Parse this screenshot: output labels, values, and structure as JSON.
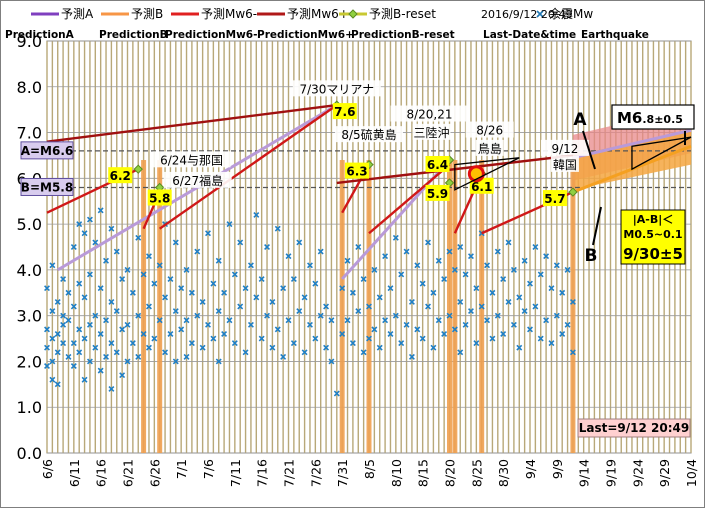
{
  "chart_data": {
    "type": "scatter",
    "x_start": "6/6",
    "x_end": "10/4",
    "x_ticks": [
      "6/6",
      "6/11",
      "6/16",
      "6/21",
      "6/26",
      "7/1",
      "7/6",
      "7/11",
      "7/16",
      "7/21",
      "7/26",
      "7/31",
      "8/5",
      "8/10",
      "8/15",
      "8/20",
      "8/25",
      "8/30",
      "9/4",
      "9/9",
      "9/14",
      "9/19",
      "9/24",
      "9/29",
      "10/4"
    ],
    "ylim": [
      0,
      9
    ],
    "y_ticks": [
      "0.0",
      "1.0",
      "2.0",
      "3.0",
      "4.0",
      "5.0",
      "6.0",
      "7.0",
      "8.0",
      "9.0"
    ],
    "last_date": "2016/9/12 20:49",
    "legend": [
      {
        "label": "予測A",
        "sub": "PredictionA",
        "color": "#7f3fbf",
        "kind": "line"
      },
      {
        "label": "予測B",
        "sub": "PredictionB",
        "color": "#f79646",
        "kind": "line"
      },
      {
        "label": "予測Mw6-",
        "sub": "PredictionMw6-",
        "color": "#e02020",
        "kind": "line"
      },
      {
        "label": "予測Mw6+",
        "sub": "PredictionMw6+",
        "color": "#b01818",
        "kind": "line"
      },
      {
        "label": "予測B-reset",
        "sub": "PredictionB-reset",
        "color": "#c8c832",
        "kind": "diamond-line"
      },
      {
        "label": "余震Mw",
        "sub": "Earthquake",
        "color": "#1f77b4",
        "kind": "marker"
      }
    ],
    "last_date_label": "Last-Date&time",
    "series": {
      "mw6plus": [
        {
          "x": [
            "6/6",
            "7/30"
          ],
          "y": [
            6.8,
            7.6
          ]
        },
        {
          "x": [
            "7/30",
            "9/12"
          ],
          "y": [
            5.9,
            6.5
          ]
        }
      ],
      "mw6minus": [
        {
          "x": [
            "6/6",
            "6/23"
          ],
          "y": [
            5.25,
            6.2
          ]
        },
        {
          "x": [
            "6/24",
            "6/27"
          ],
          "y": [
            4.9,
            5.7
          ]
        },
        {
          "x": [
            "6/27",
            "7/30"
          ],
          "y": [
            4.9,
            7.6
          ]
        },
        {
          "x": [
            "7/31",
            "8/5"
          ],
          "y": [
            5.25,
            6.3
          ]
        },
        {
          "x": [
            "8/5",
            "8/20"
          ],
          "y": [
            4.8,
            6.3
          ]
        },
        {
          "x": [
            "8/21",
            "8/26"
          ],
          "y": [
            4.8,
            6.1
          ]
        },
        {
          "x": [
            "8/26",
            "9/12"
          ],
          "y": [
            4.8,
            5.7
          ]
        }
      ],
      "predA": [
        {
          "x": [
            "6/8",
            "7/30"
          ],
          "y": [
            4.0,
            7.6
          ]
        },
        {
          "x": [
            "7/31",
            "8/20"
          ],
          "y": [
            3.8,
            6.4
          ]
        },
        {
          "x": [
            "9/12",
            "10/4"
          ],
          "y": [
            6.45,
            7.05
          ]
        }
      ],
      "predB": [
        {
          "x": [
            "9/12",
            "10/4"
          ],
          "y": [
            5.7,
            6.7
          ]
        }
      ],
      "orange_bars": [
        "6/24",
        "6/27",
        "7/31",
        "8/5",
        "8/20",
        "8/21",
        "8/26",
        "9/12"
      ]
    },
    "markers": [
      {
        "label": "6.2",
        "x": "6/23",
        "y": 6.2
      },
      {
        "label": "5.8",
        "x": "6/27",
        "y": 5.8
      },
      {
        "label": "7.6",
        "x": "7/30",
        "y": 7.6
      },
      {
        "label": "6.3",
        "x": "8/5",
        "y": 6.3
      },
      {
        "label": "6.4",
        "x": "8/20",
        "y": 6.4
      },
      {
        "label": "5.9",
        "x": "8/20",
        "y": 5.9
      },
      {
        "label": "6.1",
        "x": "8/26",
        "y": 6.1
      },
      {
        "label": "5.7",
        "x": "9/12",
        "y": 5.7
      }
    ],
    "event_labels": [
      {
        "text": "6/24与那国",
        "x": "6/24",
        "y": 6.35
      },
      {
        "text": "6/27福島",
        "x": "6/27",
        "y": 5.9
      },
      {
        "text": "7/30マリアナ",
        "x": "7/30",
        "y": 7.9
      },
      {
        "text": "8/5硫黄島",
        "x": "8/5",
        "y": 6.9
      },
      {
        "text": "8/20,21",
        "x": "8/20",
        "y": 7.35
      },
      {
        "text": "三陸沖",
        "x": "8/20",
        "y": 6.95
      },
      {
        "text": "8/26",
        "x": "8/26",
        "y": 7.0
      },
      {
        "text": "鳥島",
        "x": "8/26",
        "y": 6.6
      },
      {
        "text": "9/12",
        "x": "9/12",
        "y": 6.6
      },
      {
        "text": "韓国",
        "x": "9/12",
        "y": 6.25
      }
    ],
    "ref_lines": [
      {
        "label": "A=M6.6",
        "y": 6.6
      },
      {
        "label": "B=M5.8",
        "y": 5.8
      }
    ],
    "annotations": {
      "A": "A",
      "B": "B",
      "m_main": "M6",
      "m_sub": ".8",
      "m_pm": "±0.5",
      "diff": "|A-B|＜",
      "diff_range": "M0.5~0.1",
      "date_range": "9/30±5",
      "last": "Last=9/12 20:49"
    },
    "points": [
      {
        "x": "6/6",
        "y": 2.7
      },
      {
        "x": "6/6",
        "y": 3.6
      },
      {
        "x": "6/6",
        "y": 2.3
      },
      {
        "x": "6/6",
        "y": 1.9
      },
      {
        "x": "6/7",
        "y": 3.1
      },
      {
        "x": "6/7",
        "y": 2.5
      },
      {
        "x": "6/7",
        "y": 4.1
      },
      {
        "x": "6/7",
        "y": 2.0
      },
      {
        "x": "6/7",
        "y": 1.6
      },
      {
        "x": "6/8",
        "y": 3.3
      },
      {
        "x": "6/8",
        "y": 2.6
      },
      {
        "x": "6/8",
        "y": 2.2
      },
      {
        "x": "6/8",
        "y": 1.5
      },
      {
        "x": "6/9",
        "y": 3.0
      },
      {
        "x": "6/9",
        "y": 2.4
      },
      {
        "x": "6/9",
        "y": 3.8
      },
      {
        "x": "6/9",
        "y": 2.8
      },
      {
        "x": "6/10",
        "y": 3.5
      },
      {
        "x": "6/10",
        "y": 2.1
      },
      {
        "x": "6/10",
        "y": 2.9
      },
      {
        "x": "6/11",
        "y": 4.5
      },
      {
        "x": "6/11",
        "y": 3.2
      },
      {
        "x": "6/11",
        "y": 2.4
      },
      {
        "x": "6/11",
        "y": 1.9
      },
      {
        "x": "6/12",
        "y": 5.0
      },
      {
        "x": "6/12",
        "y": 3.7
      },
      {
        "x": "6/12",
        "y": 2.7
      },
      {
        "x": "6/12",
        "y": 2.2
      },
      {
        "x": "6/13",
        "y": 4.8
      },
      {
        "x": "6/13",
        "y": 3.4
      },
      {
        "x": "6/13",
        "y": 2.5
      },
      {
        "x": "6/13",
        "y": 1.6
      },
      {
        "x": "6/14",
        "y": 5.1
      },
      {
        "x": "6/14",
        "y": 3.9
      },
      {
        "x": "6/14",
        "y": 2.8
      },
      {
        "x": "6/14",
        "y": 2.0
      },
      {
        "x": "6/15",
        "y": 4.6
      },
      {
        "x": "6/15",
        "y": 3.0
      },
      {
        "x": "6/15",
        "y": 2.3
      },
      {
        "x": "6/16",
        "y": 5.3
      },
      {
        "x": "6/16",
        "y": 3.6
      },
      {
        "x": "6/16",
        "y": 2.6
      },
      {
        "x": "6/16",
        "y": 1.8
      },
      {
        "x": "6/17",
        "y": 4.2
      },
      {
        "x": "6/17",
        "y": 2.9
      },
      {
        "x": "6/17",
        "y": 2.1
      },
      {
        "x": "6/18",
        "y": 4.9
      },
      {
        "x": "6/18",
        "y": 3.3
      },
      {
        "x": "6/18",
        "y": 2.4
      },
      {
        "x": "6/18",
        "y": 1.4
      },
      {
        "x": "6/19",
        "y": 4.4
      },
      {
        "x": "6/19",
        "y": 3.1
      },
      {
        "x": "6/19",
        "y": 2.2
      },
      {
        "x": "6/20",
        "y": 3.8
      },
      {
        "x": "6/20",
        "y": 2.7
      },
      {
        "x": "6/20",
        "y": 1.7
      },
      {
        "x": "6/21",
        "y": 4.0
      },
      {
        "x": "6/21",
        "y": 2.8
      },
      {
        "x": "6/21",
        "y": 2.0
      },
      {
        "x": "6/22",
        "y": 3.5
      },
      {
        "x": "6/22",
        "y": 2.4
      },
      {
        "x": "6/23",
        "y": 4.7
      },
      {
        "x": "6/23",
        "y": 3.0
      },
      {
        "x": "6/23",
        "y": 2.1
      },
      {
        "x": "6/24",
        "y": 3.9
      },
      {
        "x": "6/24",
        "y": 2.6
      },
      {
        "x": "6/25",
        "y": 4.3
      },
      {
        "x": "6/25",
        "y": 3.2
      },
      {
        "x": "6/25",
        "y": 2.3
      },
      {
        "x": "6/26",
        "y": 3.7
      },
      {
        "x": "6/26",
        "y": 2.5
      },
      {
        "x": "6/27",
        "y": 4.1
      },
      {
        "x": "6/27",
        "y": 2.9
      },
      {
        "x": "6/28",
        "y": 5.0
      },
      {
        "x": "6/28",
        "y": 3.4
      },
      {
        "x": "6/28",
        "y": 2.2
      },
      {
        "x": "6/29",
        "y": 3.8
      },
      {
        "x": "6/29",
        "y": 2.6
      },
      {
        "x": "6/30",
        "y": 4.6
      },
      {
        "x": "6/30",
        "y": 3.1
      },
      {
        "x": "6/30",
        "y": 2.0
      },
      {
        "x": "7/1",
        "y": 3.6
      },
      {
        "x": "7/1",
        "y": 2.7
      },
      {
        "x": "7/2",
        "y": 4.0
      },
      {
        "x": "7/2",
        "y": 2.9
      },
      {
        "x": "7/2",
        "y": 2.1
      },
      {
        "x": "7/3",
        "y": 3.5
      },
      {
        "x": "7/3",
        "y": 2.4
      },
      {
        "x": "7/4",
        "y": 4.4
      },
      {
        "x": "7/4",
        "y": 3.0
      },
      {
        "x": "7/5",
        "y": 3.3
      },
      {
        "x": "7/5",
        "y": 2.3
      },
      {
        "x": "7/6",
        "y": 4.8
      },
      {
        "x": "7/6",
        "y": 2.8
      },
      {
        "x": "7/7",
        "y": 3.7
      },
      {
        "x": "7/7",
        "y": 2.5
      },
      {
        "x": "7/8",
        "y": 4.2
      },
      {
        "x": "7/8",
        "y": 3.1
      },
      {
        "x": "7/8",
        "y": 2.0
      },
      {
        "x": "7/9",
        "y": 3.5
      },
      {
        "x": "7/9",
        "y": 2.6
      },
      {
        "x": "7/10",
        "y": 5.0
      },
      {
        "x": "7/10",
        "y": 2.9
      },
      {
        "x": "7/11",
        "y": 3.9
      },
      {
        "x": "7/11",
        "y": 2.4
      },
      {
        "x": "7/12",
        "y": 4.6
      },
      {
        "x": "7/12",
        "y": 3.2
      },
      {
        "x": "7/13",
        "y": 3.6
      },
      {
        "x": "7/13",
        "y": 2.2
      },
      {
        "x": "7/14",
        "y": 4.1
      },
      {
        "x": "7/14",
        "y": 2.8
      },
      {
        "x": "7/15",
        "y": 5.2
      },
      {
        "x": "7/15",
        "y": 3.4
      },
      {
        "x": "7/16",
        "y": 3.8
      },
      {
        "x": "7/16",
        "y": 2.5
      },
      {
        "x": "7/17",
        "y": 4.5
      },
      {
        "x": "7/17",
        "y": 3.0
      },
      {
        "x": "7/18",
        "y": 3.3
      },
      {
        "x": "7/18",
        "y": 2.3
      },
      {
        "x": "7/19",
        "y": 4.9
      },
      {
        "x": "7/19",
        "y": 2.7
      },
      {
        "x": "7/20",
        "y": 3.6
      },
      {
        "x": "7/20",
        "y": 2.1
      },
      {
        "x": "7/21",
        "y": 4.3
      },
      {
        "x": "7/21",
        "y": 2.9
      },
      {
        "x": "7/22",
        "y": 3.8
      },
      {
        "x": "7/22",
        "y": 2.4
      },
      {
        "x": "7/23",
        "y": 4.6
      },
      {
        "x": "7/23",
        "y": 3.1
      },
      {
        "x": "7/24",
        "y": 3.4
      },
      {
        "x": "7/24",
        "y": 2.2
      },
      {
        "x": "7/25",
        "y": 4.1
      },
      {
        "x": "7/25",
        "y": 2.8
      },
      {
        "x": "7/26",
        "y": 3.7
      },
      {
        "x": "7/26",
        "y": 2.5
      },
      {
        "x": "7/27",
        "y": 4.4
      },
      {
        "x": "7/27",
        "y": 3.0
      },
      {
        "x": "7/28",
        "y": 3.2
      },
      {
        "x": "7/28",
        "y": 2.3
      },
      {
        "x": "7/29",
        "y": 2.9
      },
      {
        "x": "7/29",
        "y": 2.0
      },
      {
        "x": "7/30",
        "y": 1.3
      },
      {
        "x": "7/31",
        "y": 3.6
      },
      {
        "x": "7/31",
        "y": 2.6
      },
      {
        "x": "8/1",
        "y": 4.2
      },
      {
        "x": "8/1",
        "y": 2.9
      },
      {
        "x": "8/2",
        "y": 3.5
      },
      {
        "x": "8/2",
        "y": 2.4
      },
      {
        "x": "8/3",
        "y": 4.5
      },
      {
        "x": "8/3",
        "y": 3.1
      },
      {
        "x": "8/4",
        "y": 3.8
      },
      {
        "x": "8/4",
        "y": 2.2
      },
      {
        "x": "8/5",
        "y": 3.2
      },
      {
        "x": "8/5",
        "y": 2.5
      },
      {
        "x": "8/6",
        "y": 4.0
      },
      {
        "x": "8/6",
        "y": 2.7
      },
      {
        "x": "8/7",
        "y": 3.4
      },
      {
        "x": "8/7",
        "y": 2.3
      },
      {
        "x": "8/8",
        "y": 4.3
      },
      {
        "x": "8/8",
        "y": 2.9
      },
      {
        "x": "8/9",
        "y": 3.6
      },
      {
        "x": "8/9",
        "y": 2.6
      },
      {
        "x": "8/10",
        "y": 4.7
      },
      {
        "x": "8/10",
        "y": 3.0
      },
      {
        "x": "8/11",
        "y": 3.9
      },
      {
        "x": "8/11",
        "y": 2.4
      },
      {
        "x": "8/12",
        "y": 4.4
      },
      {
        "x": "8/12",
        "y": 2.8
      },
      {
        "x": "8/13",
        "y": 3.3
      },
      {
        "x": "8/13",
        "y": 2.1
      },
      {
        "x": "8/14",
        "y": 4.1
      },
      {
        "x": "8/14",
        "y": 2.7
      },
      {
        "x": "8/15",
        "y": 3.7
      },
      {
        "x": "8/15",
        "y": 2.5
      },
      {
        "x": "8/16",
        "y": 4.6
      },
      {
        "x": "8/16",
        "y": 3.2
      },
      {
        "x": "8/17",
        "y": 3.5
      },
      {
        "x": "8/17",
        "y": 2.3
      },
      {
        "x": "8/18",
        "y": 4.2
      },
      {
        "x": "8/18",
        "y": 2.9
      },
      {
        "x": "8/19",
        "y": 3.8
      },
      {
        "x": "8/19",
        "y": 2.6
      },
      {
        "x": "8/20",
        "y": 4.4
      },
      {
        "x": "8/20",
        "y": 3.0
      },
      {
        "x": "8/21",
        "y": 4.0
      },
      {
        "x": "8/21",
        "y": 2.7
      },
      {
        "x": "8/22",
        "y": 4.5
      },
      {
        "x": "8/22",
        "y": 3.3
      },
      {
        "x": "8/22",
        "y": 2.2
      },
      {
        "x": "8/23",
        "y": 3.9
      },
      {
        "x": "8/23",
        "y": 2.8
      },
      {
        "x": "8/24",
        "y": 4.3
      },
      {
        "x": "8/24",
        "y": 3.1
      },
      {
        "x": "8/25",
        "y": 3.6
      },
      {
        "x": "8/25",
        "y": 2.4
      },
      {
        "x": "8/26",
        "y": 4.8
      },
      {
        "x": "8/26",
        "y": 3.2
      },
      {
        "x": "8/27",
        "y": 4.1
      },
      {
        "x": "8/27",
        "y": 2.9
      },
      {
        "x": "8/28",
        "y": 3.5
      },
      {
        "x": "8/28",
        "y": 2.5
      },
      {
        "x": "8/29",
        "y": 4.4
      },
      {
        "x": "8/29",
        "y": 3.0
      },
      {
        "x": "8/30",
        "y": 3.8
      },
      {
        "x": "8/30",
        "y": 2.6
      },
      {
        "x": "8/31",
        "y": 4.6
      },
      {
        "x": "8/31",
        "y": 3.3
      },
      {
        "x": "9/1",
        "y": 4.0
      },
      {
        "x": "9/1",
        "y": 2.8
      },
      {
        "x": "9/2",
        "y": 3.4
      },
      {
        "x": "9/2",
        "y": 2.3
      },
      {
        "x": "9/3",
        "y": 4.2
      },
      {
        "x": "9/3",
        "y": 3.1
      },
      {
        "x": "9/4",
        "y": 3.7
      },
      {
        "x": "9/4",
        "y": 2.7
      },
      {
        "x": "9/5",
        "y": 4.5
      },
      {
        "x": "9/5",
        "y": 3.2
      },
      {
        "x": "9/6",
        "y": 3.9
      },
      {
        "x": "9/6",
        "y": 2.5
      },
      {
        "x": "9/7",
        "y": 4.3
      },
      {
        "x": "9/7",
        "y": 2.9
      },
      {
        "x": "9/8",
        "y": 3.6
      },
      {
        "x": "9/8",
        "y": 2.4
      },
      {
        "x": "9/9",
        "y": 4.1
      },
      {
        "x": "9/9",
        "y": 3.0
      },
      {
        "x": "9/10",
        "y": 3.5
      },
      {
        "x": "9/10",
        "y": 2.6
      },
      {
        "x": "9/11",
        "y": 4.0
      },
      {
        "x": "9/11",
        "y": 2.8
      },
      {
        "x": "9/12",
        "y": 3.3
      },
      {
        "x": "9/12",
        "y": 2.2
      }
    ]
  }
}
